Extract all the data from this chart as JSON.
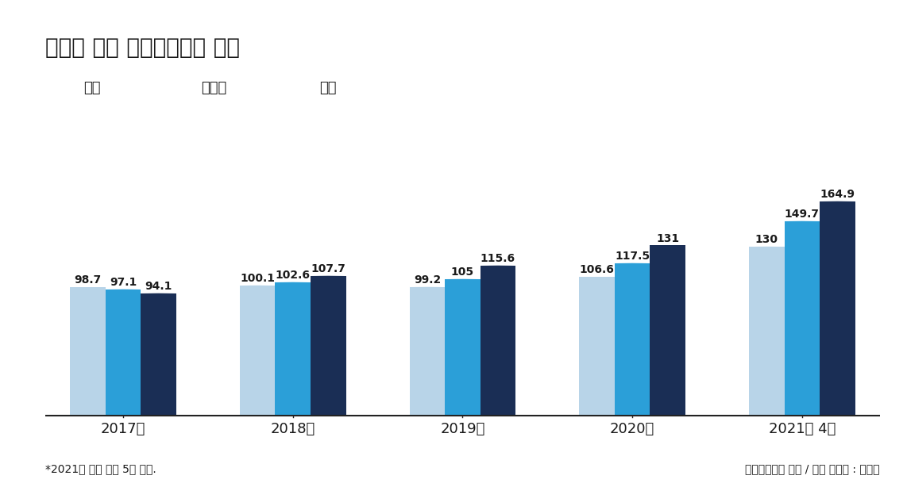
{
  "title": "아파트 매매 실거래가지수 흐름",
  "title_bar_color": "#1a1a1a",
  "background_color": "#ffffff",
  "categories": [
    "2017년",
    "2018년",
    "2019년",
    "2020년",
    "2021년 4월"
  ],
  "series": {
    "전국": [
      98.7,
      100.1,
      99.2,
      106.6,
      130
    ],
    "수도권": [
      97.1,
      102.6,
      105,
      117.5,
      149.7
    ],
    "서울": [
      94.1,
      107.7,
      115.6,
      131,
      164.9
    ]
  },
  "value_labels": {
    "전국": [
      "98.7",
      "100.1",
      "99.2",
      "106.6",
      "130"
    ],
    "수도권": [
      "97.1",
      "102.6",
      "105",
      "117.5",
      "149.7"
    ],
    "서울": [
      "94.1",
      "107.7",
      "115.6",
      "131",
      "164.9"
    ]
  },
  "colors": {
    "전국": "#b8d4e8",
    "수도권": "#2b9fd8",
    "서울": "#1a2e55"
  },
  "legend_labels": [
    "전국",
    "수도권",
    "서울"
  ],
  "footnote_left": "*2021년 제외 매년 5월 기준.",
  "footnote_right": "한국부동산원 자료 / 모션 그래픽 : 이은경",
  "ylim": [
    0,
    185
  ],
  "bar_width": 0.25,
  "value_fontsize": 10,
  "label_fontsize": 13,
  "title_fontsize": 20,
  "legend_fontsize": 13,
  "footnote_fontsize": 10,
  "text_color": "#1a1a1a"
}
